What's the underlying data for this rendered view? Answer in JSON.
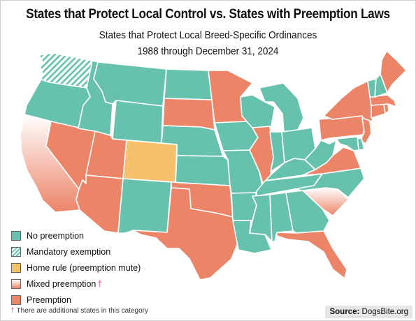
{
  "title": "States that Protect Local Control vs. States with Preemption Laws",
  "subtitle_line1": "States that Protect Local Breed-Specific Ordinances",
  "subtitle_line2": "1988 through December 31, 2024",
  "colors": {
    "no_preemption": "#66c2ad",
    "preemption": "#ec8468",
    "home_rule": "#f5c16c",
    "mixed_top": "#ffffff",
    "mixed_bottom": "#ec8468",
    "border": "#ffffff"
  },
  "legend": [
    {
      "key": "no_preemption",
      "label": "No preemption",
      "dagger": ""
    },
    {
      "key": "mandatory_exemption",
      "label": "Mandatory exemption",
      "dagger": ""
    },
    {
      "key": "home_rule",
      "label": "Home rule (preemption mute)",
      "dagger": ""
    },
    {
      "key": "mixed",
      "label": "Mixed preemption",
      "dagger": "†"
    },
    {
      "key": "preemption",
      "label": "Preemption",
      "dagger": ""
    }
  ],
  "footnote": {
    "dagger": "†",
    "text": "There are additional states in this category"
  },
  "source": {
    "label": "Source:",
    "value": "DogsBite.org"
  },
  "states": [
    {
      "id": "WA",
      "category": "mandatory_exemption"
    },
    {
      "id": "OR",
      "category": "no_preemption"
    },
    {
      "id": "CA",
      "category": "mixed"
    },
    {
      "id": "NV",
      "category": "preemption"
    },
    {
      "id": "ID",
      "category": "no_preemption"
    },
    {
      "id": "MT",
      "category": "no_preemption"
    },
    {
      "id": "WY",
      "category": "no_preemption"
    },
    {
      "id": "UT",
      "category": "preemption"
    },
    {
      "id": "AZ",
      "category": "preemption"
    },
    {
      "id": "CO",
      "category": "home_rule"
    },
    {
      "id": "NM",
      "category": "no_preemption"
    },
    {
      "id": "ND",
      "category": "no_preemption"
    },
    {
      "id": "SD",
      "category": "preemption"
    },
    {
      "id": "NE",
      "category": "no_preemption"
    },
    {
      "id": "KS",
      "category": "no_preemption"
    },
    {
      "id": "OK",
      "category": "preemption"
    },
    {
      "id": "TX",
      "category": "preemption"
    },
    {
      "id": "MN",
      "category": "preemption"
    },
    {
      "id": "IA",
      "category": "no_preemption"
    },
    {
      "id": "MO",
      "category": "no_preemption"
    },
    {
      "id": "AR",
      "category": "no_preemption"
    },
    {
      "id": "LA",
      "category": "no_preemption"
    },
    {
      "id": "WI",
      "category": "no_preemption"
    },
    {
      "id": "IL",
      "category": "preemption"
    },
    {
      "id": "MI",
      "category": "no_preemption"
    },
    {
      "id": "IN",
      "category": "no_preemption"
    },
    {
      "id": "OH",
      "category": "no_preemption"
    },
    {
      "id": "KY",
      "category": "no_preemption"
    },
    {
      "id": "TN",
      "category": "no_preemption"
    },
    {
      "id": "MS",
      "category": "no_preemption"
    },
    {
      "id": "AL",
      "category": "no_preemption"
    },
    {
      "id": "GA",
      "category": "no_preemption"
    },
    {
      "id": "FL",
      "category": "preemption"
    },
    {
      "id": "SC",
      "category": "mixed"
    },
    {
      "id": "NC",
      "category": "no_preemption"
    },
    {
      "id": "VA",
      "category": "preemption"
    },
    {
      "id": "WV",
      "category": "no_preemption"
    },
    {
      "id": "PA",
      "category": "preemption"
    },
    {
      "id": "NY",
      "category": "preemption"
    },
    {
      "id": "NJ",
      "category": "preemption"
    },
    {
      "id": "DE",
      "category": "no_preemption"
    },
    {
      "id": "MD",
      "category": "no_preemption"
    },
    {
      "id": "CT",
      "category": "preemption"
    },
    {
      "id": "RI",
      "category": "preemption"
    },
    {
      "id": "MA",
      "category": "preemption"
    },
    {
      "id": "VT",
      "category": "no_preemption"
    },
    {
      "id": "NH",
      "category": "no_preemption"
    },
    {
      "id": "ME",
      "category": "preemption"
    }
  ]
}
